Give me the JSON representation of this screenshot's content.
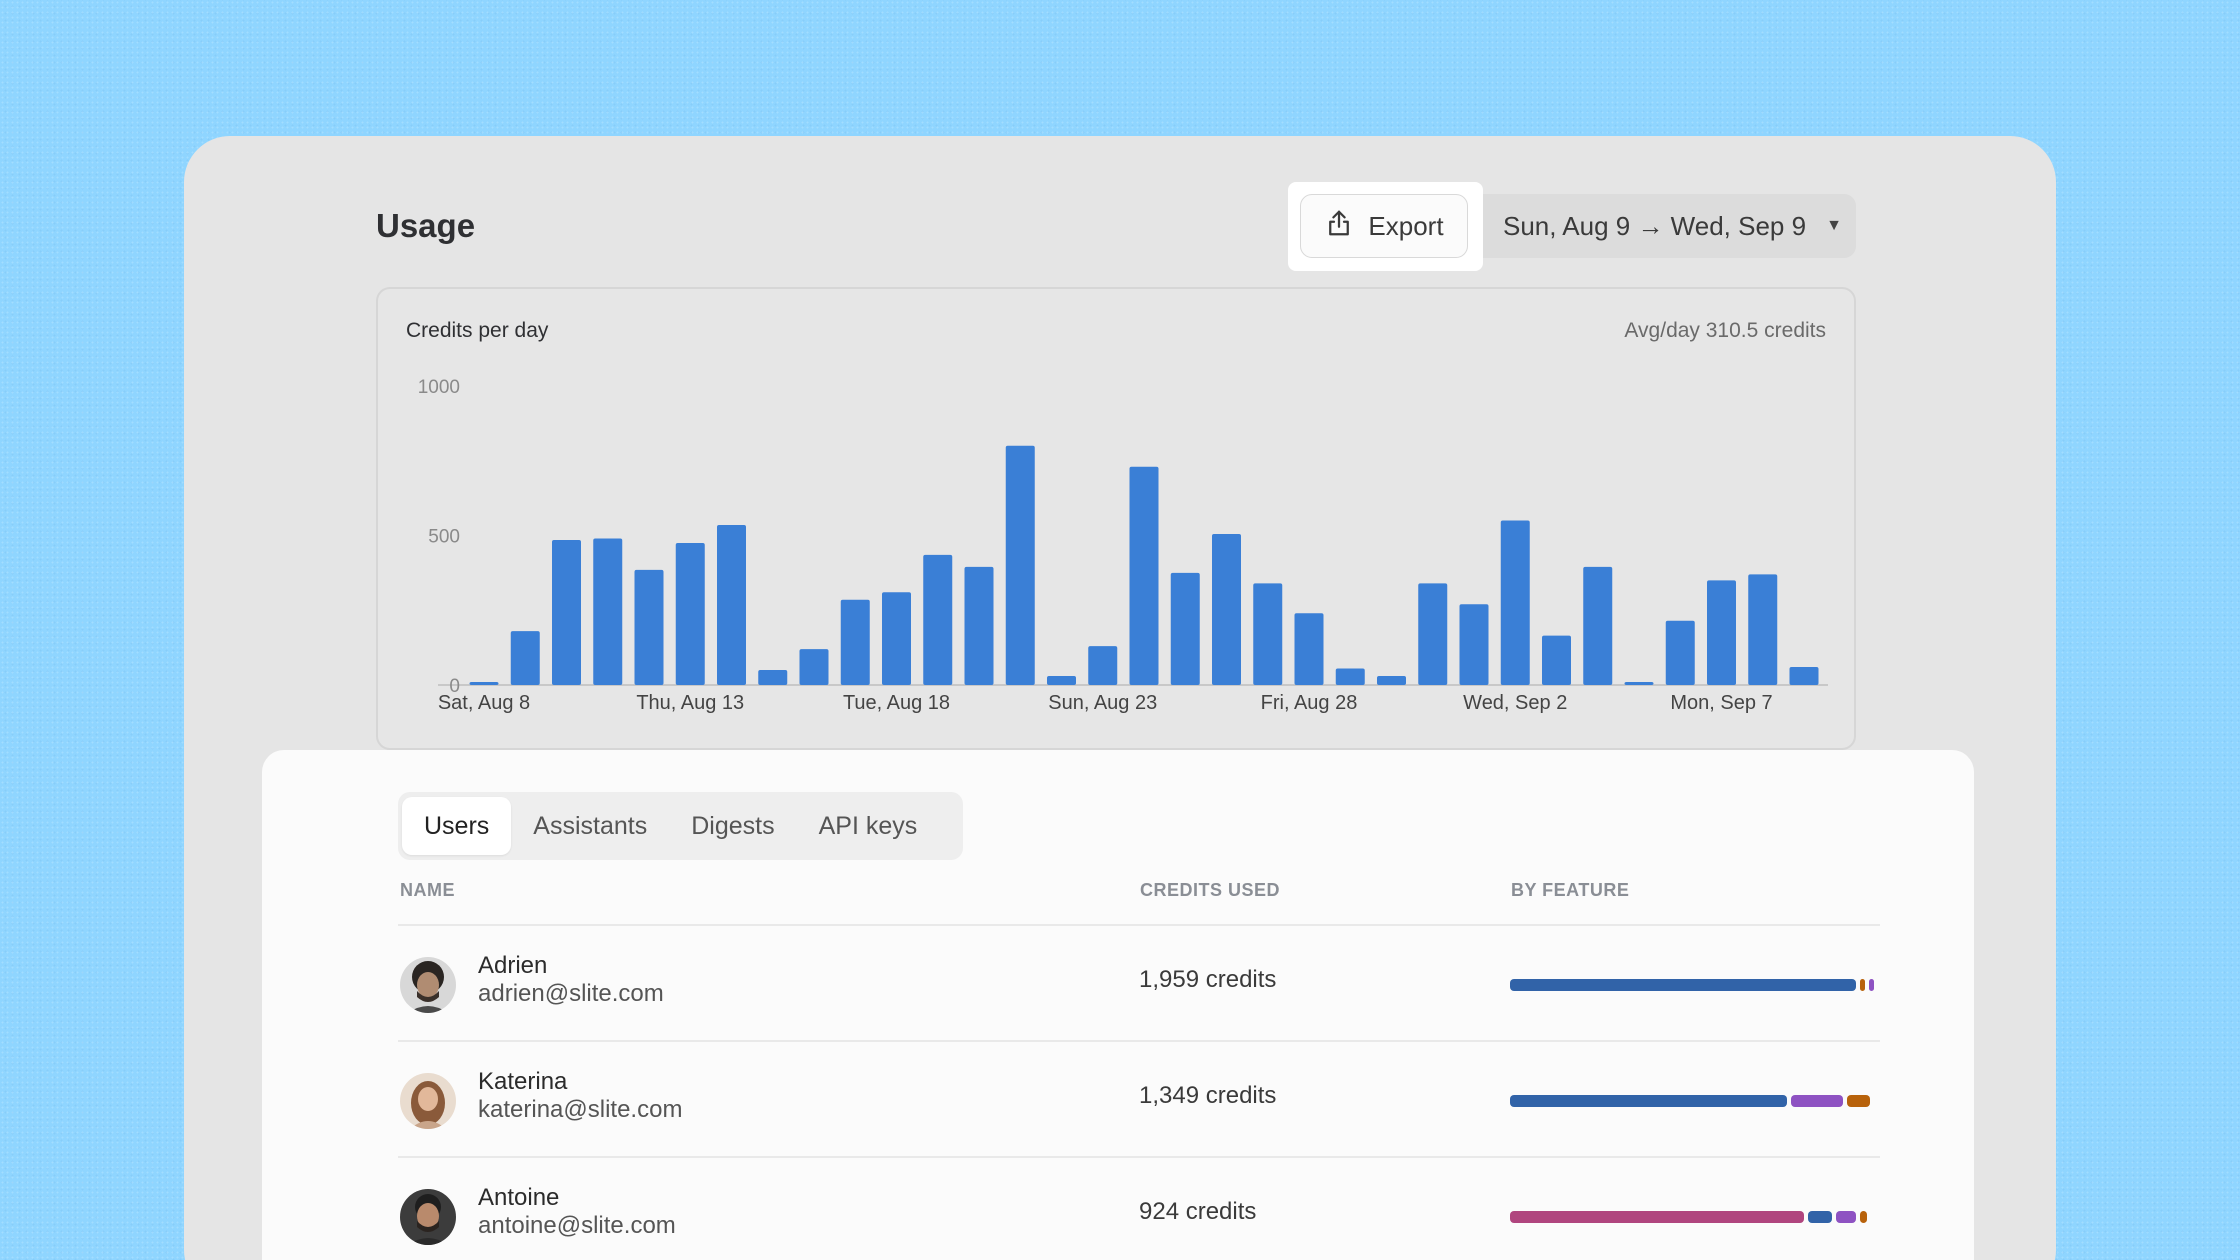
{
  "header": {
    "title": "Usage",
    "export_label": "Export",
    "date_range": "Sun, Aug 9 → Wed, Sep 9"
  },
  "chart_card": {
    "title": "Credits per day",
    "avg": "Avg/day 310.5 credits"
  },
  "colors": {
    "bar": "#3a7fd6",
    "feature_blue": "#3163a8",
    "feature_purple": "#8e52c2",
    "feature_orange": "#b8620b",
    "feature_pink": "#b0457e"
  },
  "chart_data": {
    "type": "bar",
    "title": "Credits per day",
    "ylim": [
      0,
      1000
    ],
    "y_ticks": [
      "0",
      "500",
      "1000"
    ],
    "x_tick_labels": [
      "Sat, Aug 8",
      "Thu, Aug 13",
      "Tue, Aug 18",
      "Sun, Aug 23",
      "Fri, Aug 28",
      "Wed, Sep 2",
      "Mon, Sep 7"
    ],
    "x_tick_positions": [
      0,
      5,
      10,
      15,
      20,
      25,
      30
    ],
    "categories": [
      "Aug 8",
      "Aug 9",
      "Aug 10",
      "Aug 11",
      "Aug 12",
      "Aug 13",
      "Aug 14",
      "Aug 15",
      "Aug 16",
      "Aug 17",
      "Aug 18",
      "Aug 19",
      "Aug 20",
      "Aug 21",
      "Aug 22",
      "Aug 23",
      "Aug 24",
      "Aug 25",
      "Aug 26",
      "Aug 27",
      "Aug 28",
      "Aug 29",
      "Aug 30",
      "Aug 31",
      "Sep 1",
      "Sep 2",
      "Sep 3",
      "Sep 4",
      "Sep 5",
      "Sep 6",
      "Sep 7",
      "Sep 8",
      "Sep 9"
    ],
    "values": [
      10,
      180,
      485,
      490,
      385,
      475,
      535,
      50,
      120,
      285,
      310,
      435,
      395,
      800,
      30,
      130,
      730,
      375,
      505,
      340,
      240,
      55,
      30,
      340,
      270,
      550,
      165,
      395,
      10,
      215,
      350,
      370,
      60
    ],
    "grid": false
  },
  "tabs": [
    {
      "label": "Users",
      "active": true
    },
    {
      "label": "Assistants",
      "active": false
    },
    {
      "label": "Digests",
      "active": false
    },
    {
      "label": "API keys",
      "active": false
    }
  ],
  "table": {
    "headers": {
      "name": "NAME",
      "credits": "CREDITS USED",
      "feature": "BY FEATURE"
    },
    "rows": [
      {
        "name": "Adrien",
        "email": "adrien@slite.com",
        "credits": "1,959 credits",
        "avatar": "person-avatar",
        "features": [
          {
            "color": "feature_blue",
            "share": 0.945
          },
          {
            "color": "feature_orange",
            "share": 0.02
          },
          {
            "color": "feature_purple",
            "share": 0.012
          }
        ]
      },
      {
        "name": "Katerina",
        "email": "katerina@slite.com",
        "credits": "1,349 credits",
        "avatar": "person-avatar",
        "features": [
          {
            "color": "feature_blue",
            "share": 0.76
          },
          {
            "color": "feature_purple",
            "share": 0.15
          },
          {
            "color": "feature_orange",
            "share": 0.075
          }
        ]
      },
      {
        "name": "Antoine",
        "email": "antoine@slite.com",
        "credits": "924 credits",
        "avatar": "person-avatar",
        "features": [
          {
            "color": "feature_pink",
            "share": 0.805
          },
          {
            "color": "feature_blue",
            "share": 0.075
          },
          {
            "color": "feature_purple",
            "share": 0.065
          },
          {
            "color": "feature_orange",
            "share": 0.03
          }
        ]
      }
    ]
  }
}
